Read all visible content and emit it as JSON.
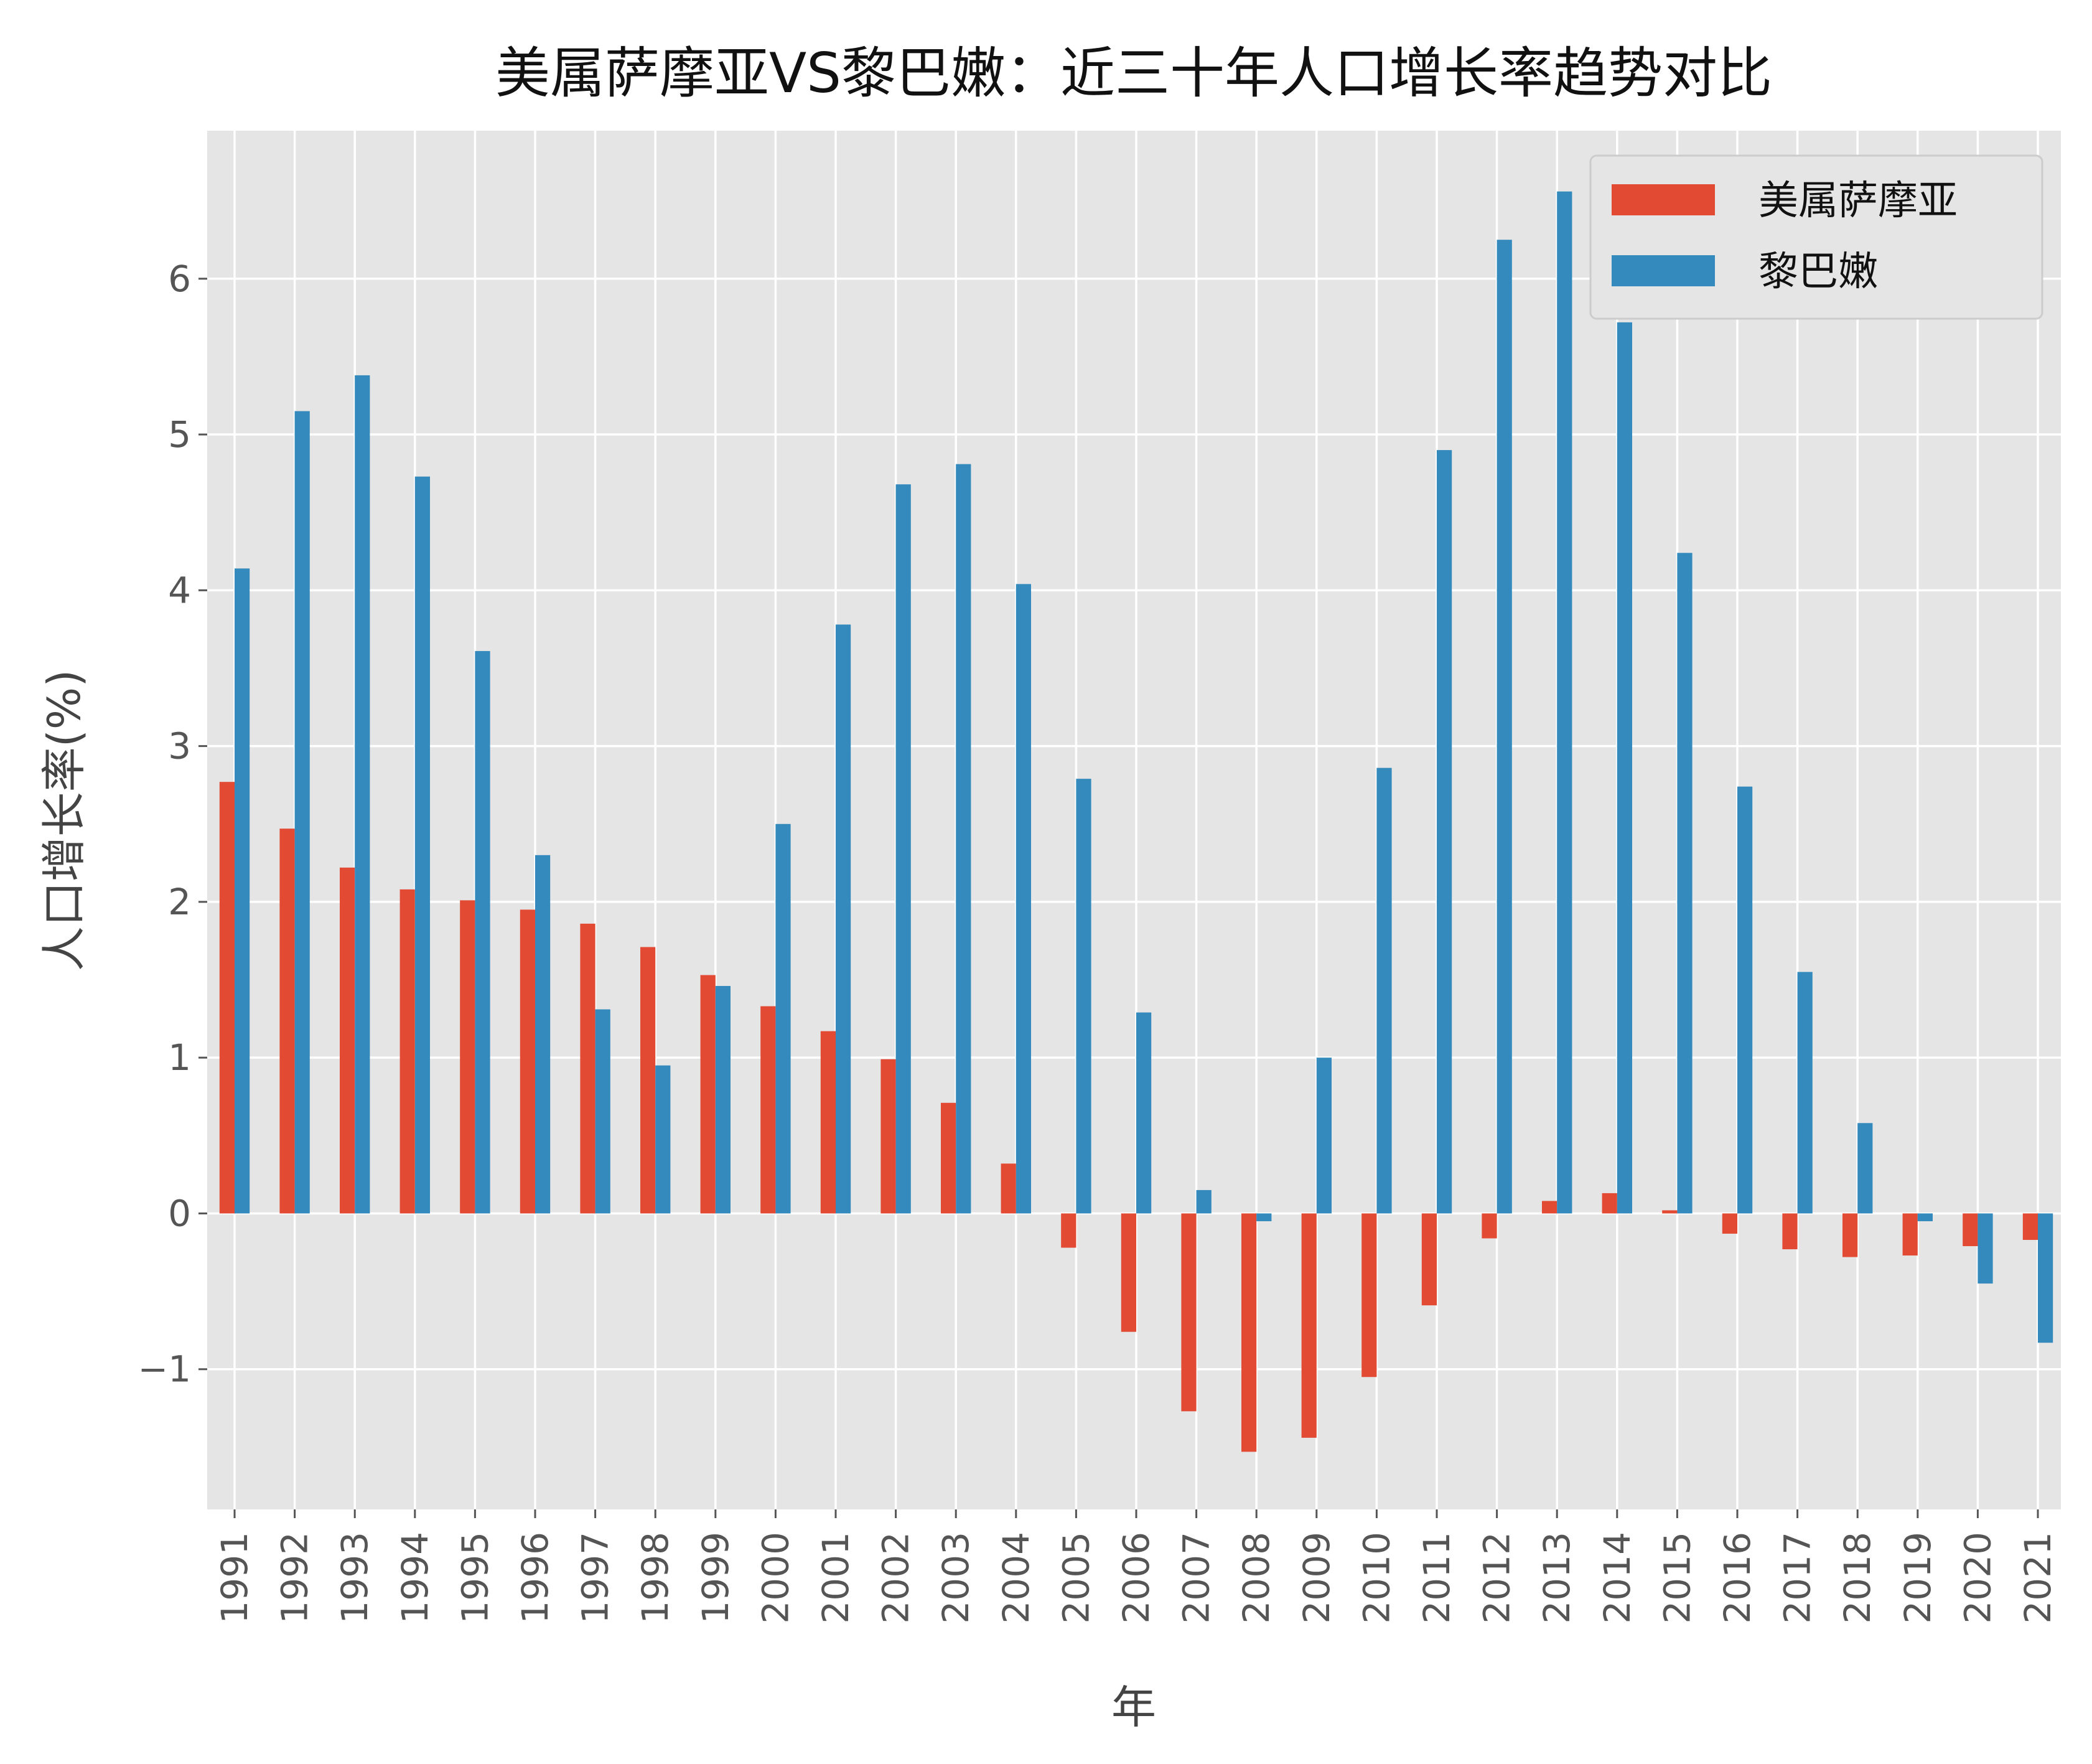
{
  "chart_data": {
    "type": "bar",
    "title": "美属萨摩亚VS黎巴嫩：近三十年人口增长率趋势对比",
    "xlabel": "年",
    "ylabel": "人口增长率(%)",
    "ylim": [
      -1.9,
      6.95
    ],
    "yticks": [
      -1,
      0,
      1,
      2,
      3,
      4,
      5,
      6
    ],
    "grid": true,
    "legend_position": "top-right",
    "categories": [
      "1991",
      "1992",
      "1993",
      "1994",
      "1995",
      "1996",
      "1997",
      "1998",
      "1999",
      "2000",
      "2001",
      "2002",
      "2003",
      "2004",
      "2005",
      "2006",
      "2007",
      "2008",
      "2009",
      "2010",
      "2011",
      "2012",
      "2013",
      "2014",
      "2015",
      "2016",
      "2017",
      "2018",
      "2019",
      "2020",
      "2021"
    ],
    "series": [
      {
        "name": "美属萨摩亚",
        "color": "#E24A33",
        "values": [
          2.77,
          2.47,
          2.22,
          2.08,
          2.01,
          1.95,
          1.86,
          1.71,
          1.53,
          1.33,
          1.17,
          0.99,
          0.71,
          0.32,
          -0.22,
          -0.76,
          -1.27,
          -1.53,
          -1.44,
          -1.05,
          -0.59,
          -0.16,
          0.08,
          0.13,
          0.02,
          -0.13,
          -0.23,
          -0.28,
          -0.27,
          -0.21,
          -0.17
        ]
      },
      {
        "name": "黎巴嫩",
        "color": "#348ABD",
        "values": [
          4.14,
          5.15,
          5.38,
          4.73,
          3.61,
          2.3,
          1.31,
          0.95,
          1.46,
          2.5,
          3.78,
          4.68,
          4.81,
          4.04,
          2.79,
          1.29,
          0.15,
          -0.05,
          1.0,
          2.86,
          4.9,
          6.25,
          6.56,
          5.72,
          4.24,
          2.74,
          1.55,
          0.58,
          -0.05,
          -0.45,
          -0.83
        ]
      }
    ]
  }
}
